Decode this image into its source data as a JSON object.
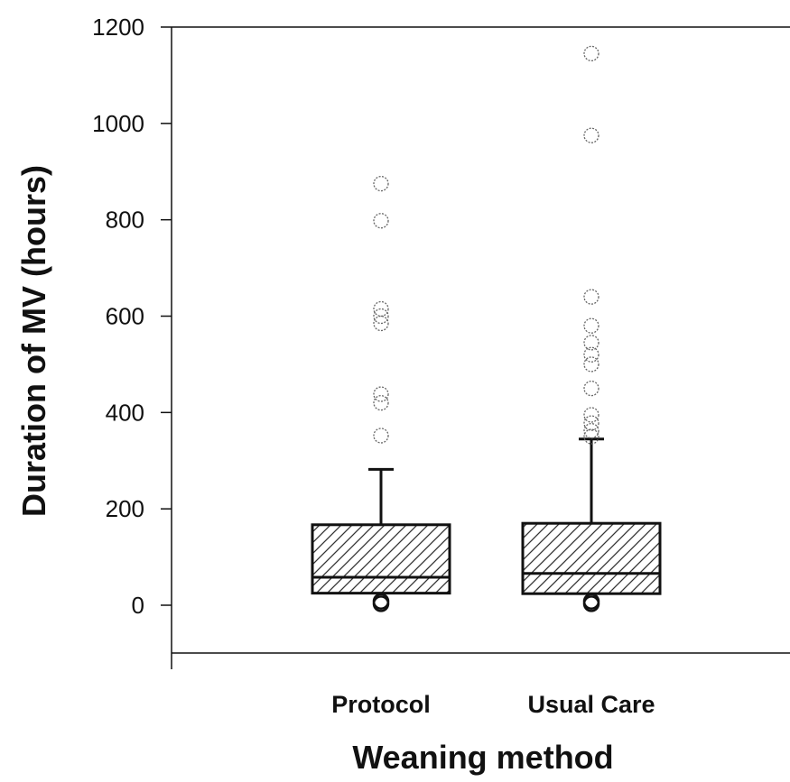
{
  "chart_data": {
    "type": "boxplot",
    "xlabel": "Weaning method",
    "ylabel": "Duration of MV (hours)",
    "ylim": [
      -100,
      1200
    ],
    "yticks": [
      0,
      200,
      400,
      600,
      800,
      1000,
      1200
    ],
    "categories": [
      "Protocol",
      "Usual Care"
    ],
    "boxes": [
      {
        "category": "Protocol",
        "q1": 25,
        "median": 58,
        "q3": 167,
        "whisker_low": 25,
        "whisker_high": 282,
        "outliers": [
          3,
          8,
          352,
          420,
          438,
          585,
          600,
          615,
          798,
          875
        ]
      },
      {
        "category": "Usual Care",
        "q1": 24,
        "median": 66,
        "q3": 170,
        "whisker_low": 24,
        "whisker_high": 345,
        "outliers": [
          3,
          8,
          350,
          362,
          378,
          395,
          450,
          500,
          520,
          545,
          580,
          640,
          975,
          1145
        ]
      }
    ],
    "grid": false,
    "legend": "none",
    "box_fill": "diagonal hatch",
    "colors": {
      "box_stroke": "#111111",
      "outlier": "#555555",
      "hatch": "#333333"
    }
  }
}
